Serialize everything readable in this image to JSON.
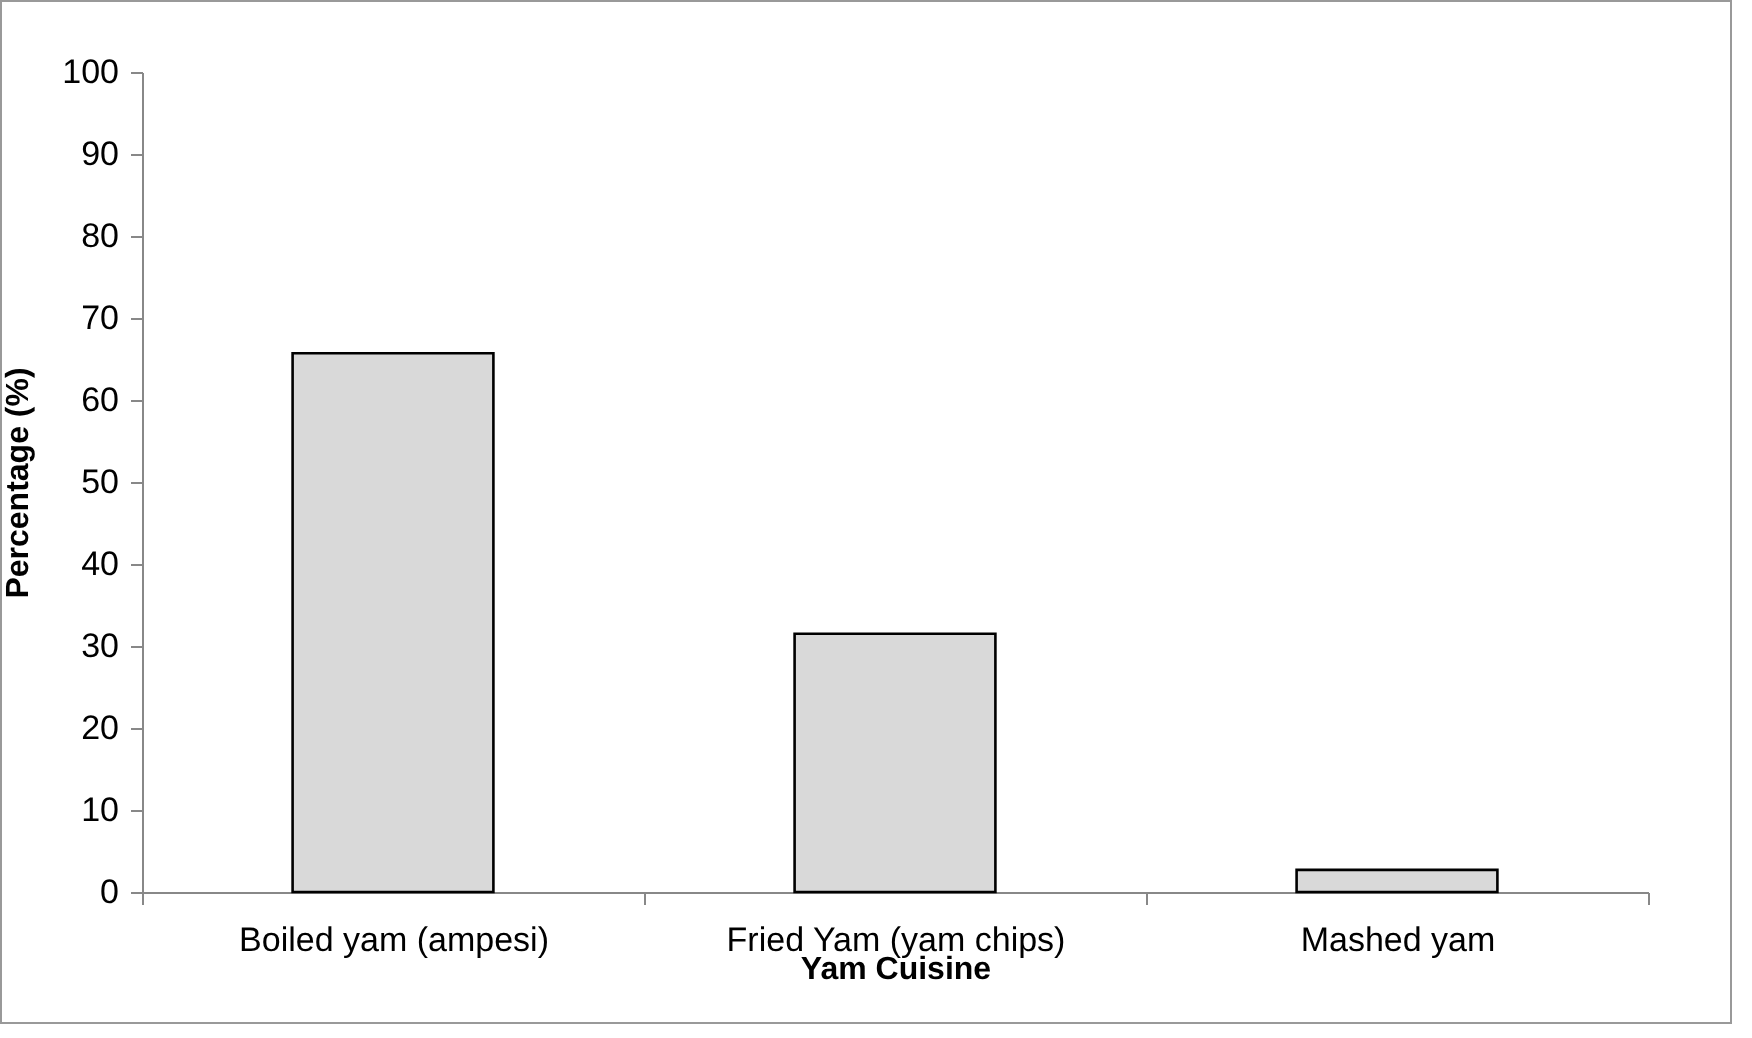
{
  "chart_data": {
    "type": "bar",
    "xlabel": "Yam Cuisine",
    "ylabel": "Percentage (%)",
    "categories": [
      "Boiled yam (ampesi)",
      "Fried Yam (yam chips)",
      "Mashed yam"
    ],
    "values": [
      65.7,
      31.5,
      2.7
    ],
    "color": "#d9d9d9",
    "ylim": [
      0,
      100
    ],
    "yticks": [
      0,
      10,
      20,
      30,
      40,
      50,
      60,
      70,
      80,
      90,
      100
    ],
    "grid": false
  }
}
